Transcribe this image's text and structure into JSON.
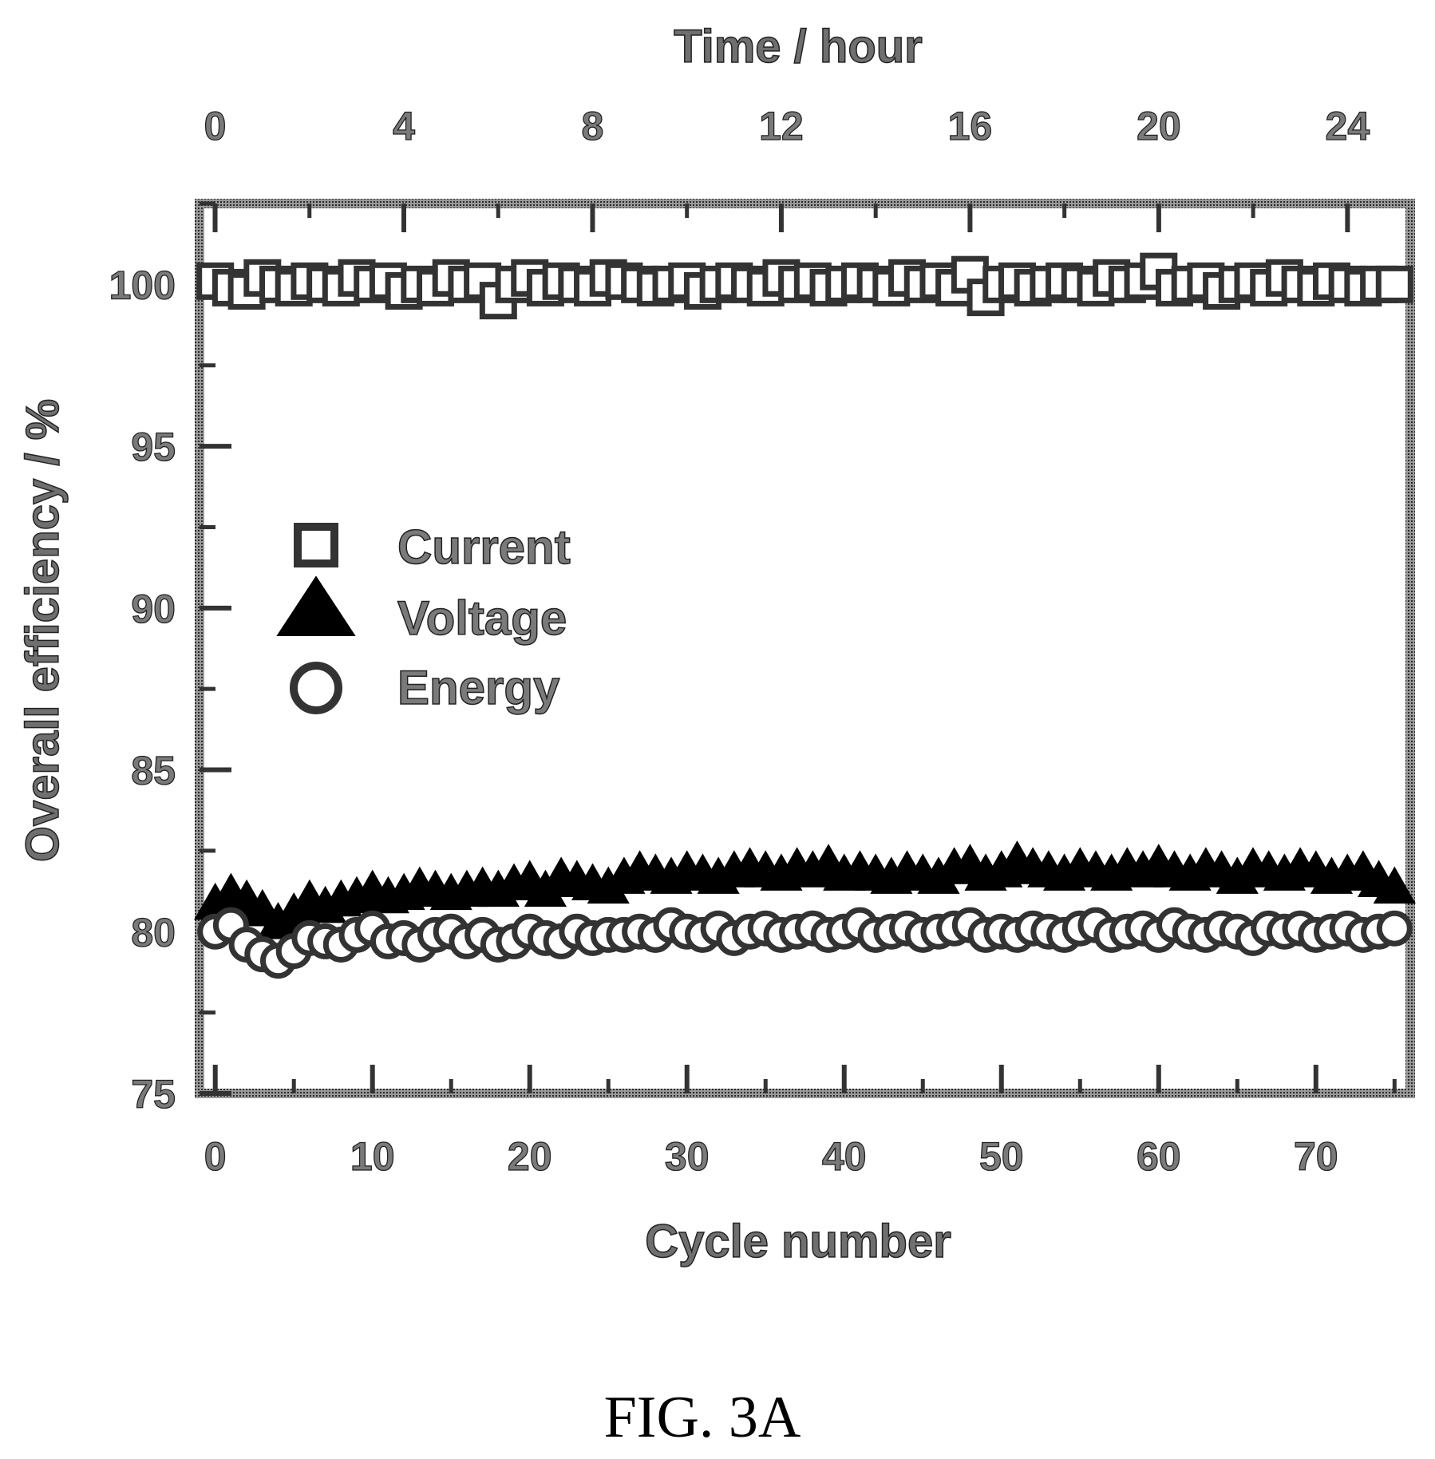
{
  "figure_caption": "FIG. 3A",
  "chart_data": {
    "type": "scatter",
    "xlabel": "Cycle number",
    "x2label": "Time / hour",
    "ylabel": "Overall efficiency / %",
    "xlim": [
      -1,
      76
    ],
    "x2lim": [
      -0.33,
      25.33
    ],
    "ylim": [
      75,
      102.5
    ],
    "x_ticks": [
      0,
      10,
      20,
      30,
      40,
      50,
      60,
      70
    ],
    "x_tick_labels": [
      "0",
      "10",
      "20",
      "30",
      "40",
      "50",
      "60",
      "70"
    ],
    "x2_ticks": [
      0,
      4,
      8,
      12,
      16,
      20,
      24
    ],
    "x2_tick_labels": [
      "0",
      "4",
      "8",
      "12",
      "16",
      "20",
      "24"
    ],
    "y_ticks": [
      75,
      80,
      85,
      90,
      95,
      100
    ],
    "y_tick_labels": [
      "75",
      "80",
      "85",
      "90",
      "95",
      "100"
    ],
    "legend_position": "center-left",
    "series": [
      {
        "name": "Current",
        "marker": "open-square",
        "color": "#333333",
        "x": [
          0,
          1,
          2,
          3,
          4,
          5,
          6,
          7,
          8,
          9,
          10,
          11,
          12,
          13,
          14,
          15,
          16,
          17,
          18,
          19,
          20,
          21,
          22,
          23,
          24,
          25,
          26,
          27,
          28,
          29,
          30,
          31,
          32,
          33,
          34,
          35,
          36,
          37,
          38,
          39,
          40,
          41,
          42,
          43,
          44,
          45,
          46,
          47,
          48,
          49,
          50,
          51,
          52,
          53,
          54,
          55,
          56,
          57,
          58,
          59,
          60,
          61,
          62,
          63,
          64,
          65,
          66,
          67,
          68,
          69,
          70,
          71,
          72,
          73,
          74,
          75
        ],
        "values": [
          100.1,
          99.9,
          99.8,
          100.2,
          100.0,
          99.9,
          100.1,
          100.0,
          99.9,
          100.2,
          100.0,
          100.1,
          99.8,
          100.0,
          99.9,
          100.2,
          100.0,
          100.1,
          99.5,
          100.0,
          100.2,
          99.9,
          100.1,
          100.0,
          99.9,
          100.2,
          100.1,
          100.0,
          99.9,
          100.0,
          100.1,
          99.8,
          100.0,
          100.1,
          100.0,
          99.9,
          100.2,
          100.0,
          100.1,
          99.9,
          100.0,
          100.1,
          100.0,
          99.9,
          100.2,
          100.0,
          100.1,
          99.9,
          100.3,
          99.6,
          100.0,
          100.1,
          99.9,
          100.0,
          100.1,
          100.0,
          99.9,
          100.2,
          100.0,
          100.1,
          100.4,
          99.9,
          100.0,
          100.1,
          99.8,
          100.0,
          100.1,
          99.9,
          100.2,
          100.0,
          99.9,
          100.1,
          100.0,
          99.9,
          100.0,
          100.0
        ]
      },
      {
        "name": "Voltage",
        "marker": "filled-triangle",
        "color": "#000000",
        "x": [
          0,
          1,
          2,
          3,
          4,
          5,
          6,
          7,
          8,
          9,
          10,
          11,
          12,
          13,
          14,
          15,
          16,
          17,
          18,
          19,
          20,
          21,
          22,
          23,
          24,
          25,
          26,
          27,
          28,
          29,
          30,
          31,
          32,
          33,
          34,
          35,
          36,
          37,
          38,
          39,
          40,
          41,
          42,
          43,
          44,
          45,
          46,
          47,
          48,
          49,
          50,
          51,
          52,
          53,
          54,
          55,
          56,
          57,
          58,
          59,
          60,
          61,
          62,
          63,
          64,
          65,
          66,
          67,
          68,
          69,
          70,
          71,
          72,
          73,
          74,
          75
        ],
        "values": [
          80.8,
          81.1,
          80.9,
          80.6,
          80.2,
          80.5,
          80.9,
          80.7,
          80.9,
          81.0,
          81.2,
          81.0,
          81.1,
          81.3,
          81.2,
          81.1,
          81.2,
          81.3,
          81.2,
          81.4,
          81.5,
          81.2,
          81.6,
          81.5,
          81.4,
          81.3,
          81.6,
          81.8,
          81.7,
          81.6,
          81.8,
          81.7,
          81.6,
          81.8,
          81.9,
          81.8,
          81.7,
          81.9,
          81.8,
          82.0,
          81.7,
          81.8,
          81.7,
          81.6,
          81.8,
          81.7,
          81.6,
          81.9,
          82.0,
          81.7,
          81.8,
          82.1,
          81.9,
          81.8,
          81.7,
          81.9,
          81.8,
          81.7,
          81.9,
          81.8,
          82.0,
          81.8,
          81.7,
          81.9,
          81.8,
          81.6,
          81.9,
          81.8,
          81.7,
          81.9,
          81.8,
          81.6,
          81.7,
          81.8,
          81.5,
          81.3
        ]
      },
      {
        "name": "Energy",
        "marker": "open-circle",
        "color": "#333333",
        "x": [
          0,
          1,
          2,
          3,
          4,
          5,
          6,
          7,
          8,
          9,
          10,
          11,
          12,
          13,
          14,
          15,
          16,
          17,
          18,
          19,
          20,
          21,
          22,
          23,
          24,
          25,
          26,
          27,
          28,
          29,
          30,
          31,
          32,
          33,
          34,
          35,
          36,
          37,
          38,
          39,
          40,
          41,
          42,
          43,
          44,
          45,
          46,
          47,
          48,
          49,
          50,
          51,
          52,
          53,
          54,
          55,
          56,
          57,
          58,
          59,
          60,
          61,
          62,
          63,
          64,
          65,
          66,
          67,
          68,
          69,
          70,
          71,
          72,
          73,
          74,
          75
        ],
        "values": [
          80.0,
          80.2,
          79.6,
          79.3,
          79.1,
          79.4,
          79.8,
          79.7,
          79.6,
          79.9,
          80.1,
          79.7,
          79.8,
          79.6,
          79.9,
          80.0,
          79.7,
          79.9,
          79.6,
          79.7,
          80.0,
          79.8,
          79.7,
          80.0,
          79.8,
          79.9,
          79.9,
          80.0,
          79.9,
          80.2,
          80.0,
          79.9,
          80.1,
          79.8,
          80.0,
          80.1,
          79.9,
          80.0,
          80.1,
          79.9,
          80.0,
          80.2,
          79.9,
          80.0,
          80.1,
          79.9,
          80.0,
          80.1,
          80.2,
          79.9,
          80.0,
          79.9,
          80.1,
          80.0,
          79.9,
          80.1,
          80.2,
          79.9,
          80.0,
          80.1,
          79.9,
          80.2,
          80.0,
          79.9,
          80.1,
          80.0,
          79.8,
          80.1,
          80.0,
          80.1,
          79.9,
          80.0,
          80.1,
          79.9,
          80.0,
          80.1
        ]
      }
    ]
  }
}
